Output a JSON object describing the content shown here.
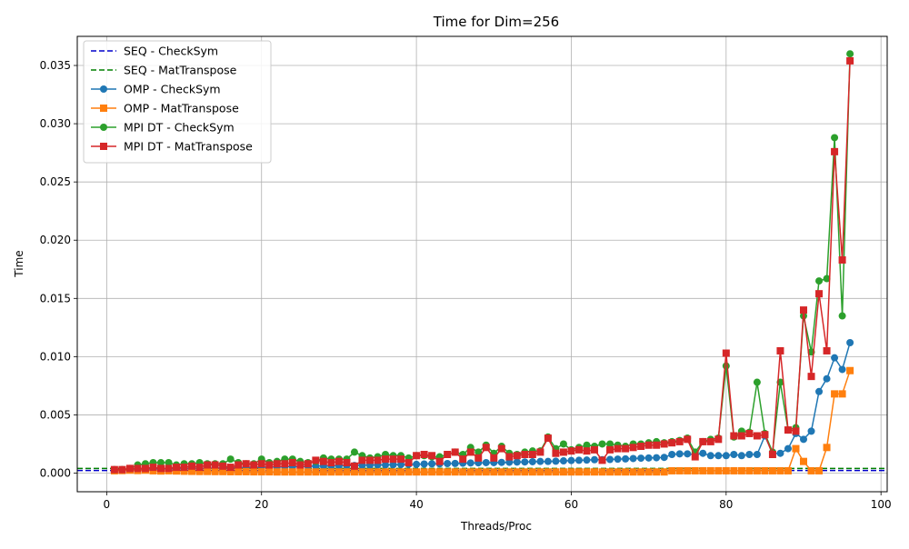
{
  "chart_data": {
    "type": "line",
    "title": "Time for Dim=256",
    "xlabel": "Threads/Proc",
    "ylabel": "Time",
    "xlim": [
      -3.8,
      100.8
    ],
    "ylim": [
      -0.0016,
      0.0375
    ],
    "xticks": [
      0,
      20,
      40,
      60,
      80,
      100
    ],
    "xtick_labels": [
      "0",
      "20",
      "40",
      "60",
      "80",
      "100"
    ],
    "yticks": [
      0,
      0.005,
      0.01,
      0.015,
      0.02,
      0.025,
      0.03,
      0.035
    ],
    "ytick_labels": [
      "0.000",
      "0.005",
      "0.010",
      "0.015",
      "0.020",
      "0.025",
      "0.030",
      "0.035"
    ],
    "grid": true,
    "legend_position": "top-left",
    "hlines": [
      {
        "name": "SEQ - CheckSym",
        "y": 0.00022,
        "color": "#0000cc",
        "style": "dashed"
      },
      {
        "name": "SEQ - MatTranspose",
        "y": 0.0004,
        "color": "#008000",
        "style": "dashed"
      }
    ],
    "series": [
      {
        "name": "OMP - CheckSym",
        "color": "#1f77b4",
        "marker": "circle",
        "x_start": 1,
        "values": [
          0.00025,
          0.00028,
          0.0003,
          0.00032,
          0.00033,
          0.00035,
          0.00035,
          0.00036,
          0.00037,
          0.00038,
          0.0004,
          0.0004,
          0.00042,
          0.00043,
          0.00045,
          0.00046,
          0.00047,
          0.00048,
          0.0005,
          0.0005,
          0.00052,
          0.00053,
          0.00055,
          0.00055,
          0.00057,
          0.00058,
          0.0006,
          0.0006,
          0.00062,
          0.00063,
          0.00065,
          0.00065,
          0.00067,
          0.00068,
          0.0007,
          0.0007,
          0.00072,
          0.00073,
          0.00075,
          0.00075,
          0.00078,
          0.0008,
          0.0008,
          0.00082,
          0.00083,
          0.00085,
          0.00087,
          0.00088,
          0.0009,
          0.0009,
          0.00092,
          0.00093,
          0.00095,
          0.00096,
          0.00098,
          0.001,
          0.001,
          0.00102,
          0.00105,
          0.00108,
          0.0011,
          0.00112,
          0.00115,
          0.00115,
          0.00117,
          0.0012,
          0.00122,
          0.00125,
          0.00128,
          0.0013,
          0.00132,
          0.00135,
          0.0016,
          0.00165,
          0.00165,
          0.0016,
          0.0017,
          0.0015,
          0.0015,
          0.0015,
          0.0016,
          0.0015,
          0.0016,
          0.0016,
          0.0032,
          0.0017,
          0.0017,
          0.0021,
          0.0034,
          0.0029,
          0.0036,
          0.007,
          0.0081,
          0.0099,
          0.0089,
          0.0112
        ]
      },
      {
        "name": "OMP - MatTranspose",
        "color": "#ff7f0e",
        "marker": "square",
        "x_start": 1,
        "values": [
          0.0002,
          0.00022,
          0.00025,
          0.00022,
          0.00025,
          0.0002,
          0.00018,
          0.0002,
          0.00018,
          0.00016,
          0.00015,
          0.00014,
          0.00014,
          0.00013,
          0.00013,
          0.00012,
          0.00012,
          0.00012,
          0.00011,
          0.00011,
          0.00011,
          0.0001,
          0.0001,
          0.0001,
          0.0001,
          0.0001,
          0.0001,
          0.0001,
          0.0001,
          0.0001,
          0.0001,
          0.0001,
          0.0001,
          0.0001,
          0.0001,
          0.0001,
          0.0001,
          0.0001,
          0.0001,
          0.0001,
          0.0001,
          0.0001,
          0.0001,
          0.0001,
          0.0001,
          0.0001,
          0.0001,
          0.0001,
          0.0001,
          0.0001,
          0.0001,
          0.0001,
          0.0001,
          0.0001,
          0.0001,
          0.0001,
          0.0001,
          0.0001,
          0.0001,
          0.0001,
          0.0001,
          0.0001,
          0.0001,
          0.0001,
          0.0001,
          0.0001,
          0.0001,
          0.0001,
          0.0001,
          0.0001,
          0.0001,
          0.0001,
          0.0002,
          0.0002,
          0.0002,
          0.0002,
          0.0002,
          0.0002,
          0.0002,
          0.0002,
          0.0002,
          0.0002,
          0.0002,
          0.0002,
          0.0002,
          0.0002,
          0.0002,
          0.0002,
          0.0021,
          0.001,
          0.0002,
          0.0002,
          0.0022,
          0.0068,
          0.0068,
          0.0088
        ]
      },
      {
        "name": "MPI DT - CheckSym",
        "color": "#2ca02c",
        "marker": "circle",
        "x_start": 1,
        "values": [
          0.0003,
          0.0003,
          0.0004,
          0.0007,
          0.0008,
          0.0009,
          0.0009,
          0.0009,
          0.0007,
          0.0008,
          0.0008,
          0.0009,
          0.0008,
          0.0008,
          0.0008,
          0.0012,
          0.0009,
          0.0008,
          0.0008,
          0.0012,
          0.0009,
          0.001,
          0.0012,
          0.0012,
          0.001,
          0.0009,
          0.001,
          0.0013,
          0.0012,
          0.0012,
          0.0012,
          0.0018,
          0.0015,
          0.0013,
          0.0014,
          0.0016,
          0.0015,
          0.0015,
          0.0013,
          0.0015,
          0.0015,
          0.0014,
          0.0014,
          0.0016,
          0.0018,
          0.0016,
          0.0022,
          0.0018,
          0.0024,
          0.0017,
          0.0023,
          0.0017,
          0.0016,
          0.0018,
          0.0019,
          0.0019,
          0.0031,
          0.0021,
          0.0025,
          0.002,
          0.0022,
          0.0024,
          0.0023,
          0.0025,
          0.0025,
          0.0024,
          0.0023,
          0.0025,
          0.0025,
          0.0026,
          0.0027,
          0.0026,
          0.0027,
          0.0028,
          0.003,
          0.0018,
          0.0027,
          0.0029,
          0.003,
          0.0092,
          0.0031,
          0.0036,
          0.0035,
          0.0078,
          0.0034,
          0.0018,
          0.0078,
          0.0037,
          0.0039,
          0.0135,
          0.0104,
          0.0165,
          0.0167,
          0.0288,
          0.0135,
          0.036
        ]
      },
      {
        "name": "MPI DT - MatTranspose",
        "color": "#d62728",
        "marker": "square",
        "x_start": 1,
        "values": [
          0.0003,
          0.0003,
          0.0004,
          0.0004,
          0.0004,
          0.0005,
          0.0004,
          0.0004,
          0.0005,
          0.0005,
          0.0006,
          0.0005,
          0.0007,
          0.0007,
          0.0006,
          0.0005,
          0.0007,
          0.0008,
          0.0007,
          0.0008,
          0.0007,
          0.0008,
          0.0008,
          0.0009,
          0.0007,
          0.0008,
          0.0011,
          0.001,
          0.0009,
          0.001,
          0.0009,
          0.0006,
          0.0011,
          0.0011,
          0.0011,
          0.0012,
          0.0012,
          0.0012,
          0.0009,
          0.0015,
          0.0016,
          0.0015,
          0.001,
          0.0016,
          0.0018,
          0.0012,
          0.0018,
          0.0013,
          0.0022,
          0.0013,
          0.0021,
          0.0014,
          0.0015,
          0.0016,
          0.0016,
          0.0018,
          0.003,
          0.0017,
          0.0018,
          0.0019,
          0.002,
          0.0019,
          0.002,
          0.0011,
          0.002,
          0.0021,
          0.0021,
          0.0022,
          0.0023,
          0.0024,
          0.0024,
          0.0025,
          0.0026,
          0.0027,
          0.0029,
          0.0014,
          0.0027,
          0.0027,
          0.0029,
          0.0103,
          0.0032,
          0.0032,
          0.0034,
          0.0032,
          0.0033,
          0.0016,
          0.0105,
          0.0037,
          0.0036,
          0.014,
          0.0083,
          0.0154,
          0.0105,
          0.0276,
          0.0183,
          0.0354
        ]
      }
    ]
  }
}
